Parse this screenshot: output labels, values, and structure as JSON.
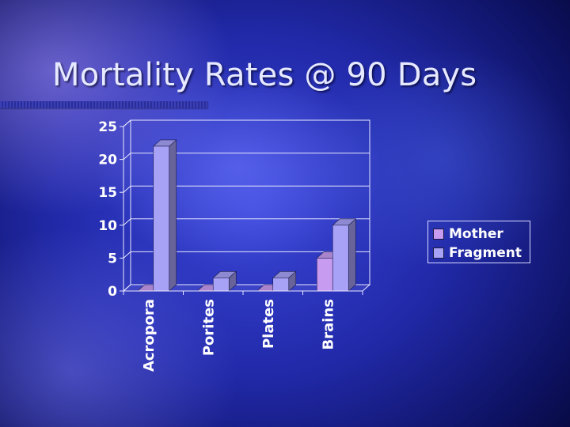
{
  "slide": {
    "title": "Mortality Rates @ 90 Days"
  },
  "colors": {
    "mother": "#c79bf0",
    "fragment": "#a7a2f6",
    "grid": "#e8e8ff",
    "text": "#ffffff"
  },
  "chart_data": {
    "type": "bar",
    "categories": [
      "Acropora",
      "Porites",
      "Plates",
      "Brains"
    ],
    "series": [
      {
        "name": "Mother",
        "values": [
          0,
          0,
          0,
          5
        ]
      },
      {
        "name": "Fragment",
        "values": [
          22,
          2,
          2,
          10
        ]
      }
    ],
    "ylim": [
      0,
      25
    ],
    "yticks": [
      "0",
      "5",
      "10",
      "15",
      "20",
      "25"
    ],
    "grid": true,
    "legend": "right",
    "three_d": true
  }
}
